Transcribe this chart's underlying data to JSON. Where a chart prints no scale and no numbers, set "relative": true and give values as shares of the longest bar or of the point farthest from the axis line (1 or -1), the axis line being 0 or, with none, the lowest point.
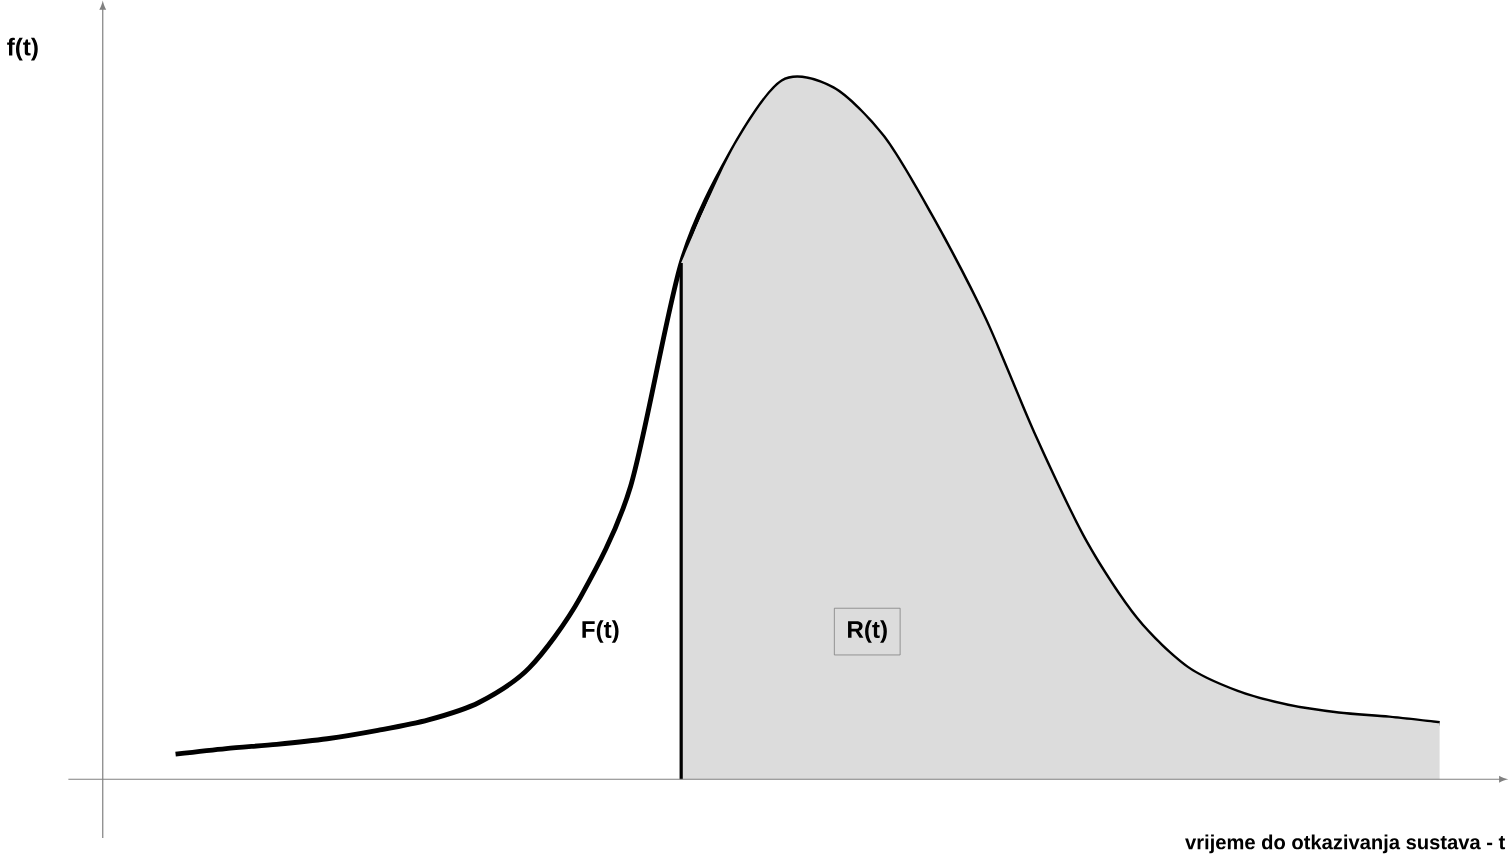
{
  "chart_data": {
    "type": "line",
    "relative": true,
    "xlabel": "vrijeme do otkazivanja sustava - t",
    "ylabel": "f(t)",
    "categories": [
      null,
      null,
      null,
      null,
      null,
      null,
      null,
      null,
      null,
      null,
      null,
      null,
      null,
      null,
      null,
      null,
      null,
      null,
      null,
      null,
      null,
      null,
      null,
      null,
      null,
      null
    ],
    "series": [
      {
        "color": "#000000",
        "values": [
          0.036,
          0.044,
          0.05,
          0.058,
          0.07,
          0.085,
          0.11,
          0.16,
          0.26,
          0.42,
          0.74,
          0.9,
          1,
          0.99,
          0.92,
          0.8,
          0.66,
          0.49,
          0.34,
          0.23,
          0.16,
          0.125,
          0.105,
          0.094,
          0.088,
          0.08
        ]
      },
      {
        "type": "area",
        "color": "#dcdcdc",
        "values": [
          null,
          null,
          null,
          null,
          null,
          null,
          null,
          null,
          null,
          null,
          0.74,
          0.9,
          1,
          0.99,
          0.92,
          0.8,
          0.66,
          0.49,
          0.34,
          0.23,
          0.16,
          0.125,
          0.105,
          0.094,
          0.088,
          0.08
        ]
      }
    ],
    "annotations": [
      "F(t)",
      "R(t)"
    ]
  }
}
